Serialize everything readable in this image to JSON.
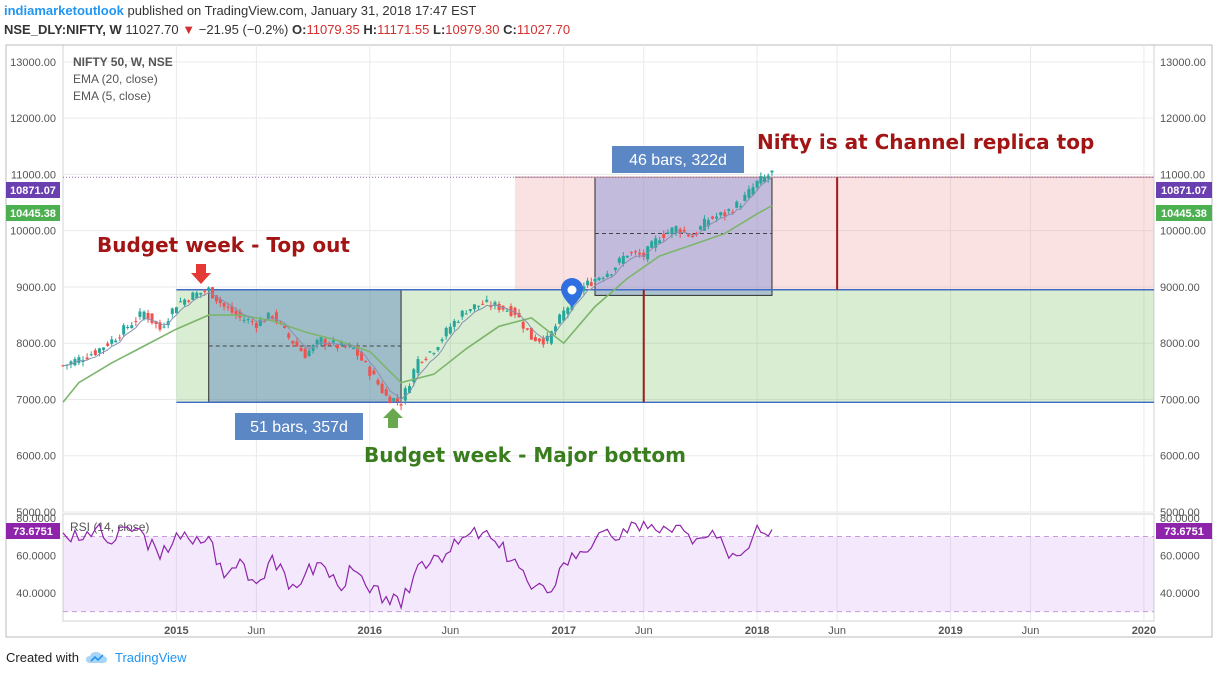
{
  "header": {
    "brand": "indiamarketoutlook",
    "published": "published on TradingView.com, January 31, 2018 17:47 EST",
    "symbol": "NSE_DLY:NIFTY, W",
    "last": "11027.70",
    "change": "−21.95 (−0.2%)",
    "o_label": "O:",
    "o": "11079.35",
    "h_label": "H:",
    "h": "11171.55",
    "l_label": "L:",
    "l": "10979.30",
    "c_label": "C:",
    "c": "11027.70"
  },
  "footer": {
    "created_with": "Created with",
    "brand": "TradingView"
  },
  "colors": {
    "ema20": "#7cb56b",
    "ema5": "#8a8fb0",
    "rsi": "#8e24aa",
    "up": "#26a69a",
    "down": "#ef5350",
    "annotation_red": "#a31515",
    "annotation_green": "#3a7d1e"
  },
  "chart_data": [
    {
      "type": "candlestick",
      "legend": [
        "NIFTY 50, W, NSE",
        "EMA (20, close)",
        "EMA (5, close)"
      ],
      "y_ticks": [
        "13000.00",
        "12000.00",
        "11000.00",
        "10000.00",
        "9000.00",
        "8000.00",
        "7000.00",
        "6000.00",
        "5000.00"
      ],
      "ylim": [
        5000,
        13300
      ],
      "x_ticks": [
        "2015",
        "Jun",
        "2016",
        "Jun",
        "2017",
        "Jun",
        "2018",
        "Jun",
        "2019",
        "Jun",
        "2020"
      ],
      "xlim": [
        "2014-06-01",
        "2020-01-20"
      ],
      "price_labels": [
        {
          "value": 10871.07,
          "text": "10871.07",
          "color": "#6a3fb0"
        },
        {
          "value": 10445.38,
          "text": "10445.38",
          "color": "#4caf50"
        }
      ],
      "price_series": {
        "x": [
          "2014-06-01",
          "2014-07-01",
          "2014-08-01",
          "2014-09-01",
          "2014-10-01",
          "2014-11-01",
          "2014-12-01",
          "2015-01-01",
          "2015-02-01",
          "2015-03-03",
          "2015-04-01",
          "2015-05-01",
          "2015-06-01",
          "2015-07-01",
          "2015-08-01",
          "2015-09-01",
          "2015-10-01",
          "2015-11-01",
          "2015-12-01",
          "2016-01-01",
          "2016-02-01",
          "2016-02-29",
          "2016-04-01",
          "2016-05-01",
          "2016-06-01",
          "2016-07-01",
          "2016-08-01",
          "2016-09-01",
          "2016-10-01",
          "2016-11-01",
          "2016-12-01",
          "2017-01-01",
          "2017-02-01",
          "2017-03-01",
          "2017-04-01",
          "2017-05-01",
          "2017-06-01",
          "2017-07-01",
          "2017-08-01",
          "2017-09-01",
          "2017-10-01",
          "2017-11-01",
          "2017-12-01",
          "2018-01-01",
          "2018-01-29"
        ],
        "close": [
          7600,
          7720,
          7850,
          8050,
          8300,
          8550,
          8250,
          8700,
          8850,
          8950,
          8650,
          8450,
          8350,
          8500,
          8100,
          7800,
          8050,
          7950,
          7900,
          7500,
          7050,
          6950,
          7700,
          7900,
          8300,
          8600,
          8700,
          8650,
          8550,
          8100,
          8050,
          8550,
          8950,
          9150,
          9300,
          9600,
          9550,
          9900,
          10050,
          9900,
          10200,
          10300,
          10500,
          10850,
          11027
        ]
      },
      "ema20_series": {
        "x": [
          "2014-06-01",
          "2014-07-01",
          "2014-09-01",
          "2014-11-01",
          "2015-01-01",
          "2015-03-03",
          "2015-05-01",
          "2015-07-01",
          "2015-09-01",
          "2015-11-01",
          "2016-01-01",
          "2016-02-29",
          "2016-05-01",
          "2016-07-01",
          "2016-09-01",
          "2016-11-01",
          "2017-01-01",
          "2017-03-01",
          "2017-05-01",
          "2017-07-01",
          "2017-09-01",
          "2017-11-01",
          "2018-01-01",
          "2018-01-29"
        ],
        "value": [
          6950,
          7300,
          7650,
          7950,
          8250,
          8500,
          8500,
          8400,
          8200,
          8050,
          7850,
          7300,
          7450,
          7900,
          8300,
          8450,
          8000,
          8650,
          9150,
          9550,
          9750,
          9950,
          10300,
          10445
        ]
      },
      "rsi": {
        "legend": "RSI (14, close)",
        "last_label": "73.6751",
        "y_ticks": [
          "80.0000",
          "60.0000",
          "40.0000"
        ],
        "ylim": [
          25,
          82
        ],
        "overbought": 70,
        "oversold": 30,
        "x": [
          "2014-06-01",
          "2014-07-01",
          "2014-08-01",
          "2014-09-01",
          "2014-10-01",
          "2014-11-01",
          "2014-12-01",
          "2015-01-01",
          "2015-02-01",
          "2015-03-03",
          "2015-04-01",
          "2015-05-01",
          "2015-06-01",
          "2015-07-01",
          "2015-08-01",
          "2015-09-01",
          "2015-10-01",
          "2015-11-01",
          "2015-12-01",
          "2016-01-01",
          "2016-02-01",
          "2016-02-29",
          "2016-04-01",
          "2016-05-01",
          "2016-06-01",
          "2016-07-01",
          "2016-08-01",
          "2016-09-01",
          "2016-10-01",
          "2016-11-01",
          "2016-12-01",
          "2017-01-01",
          "2017-02-01",
          "2017-03-01",
          "2017-04-01",
          "2017-05-01",
          "2017-06-01",
          "2017-07-01",
          "2017-08-01",
          "2017-09-01",
          "2017-10-01",
          "2017-11-01",
          "2017-12-01",
          "2018-01-01",
          "2018-01-29"
        ],
        "value": [
          72,
          68,
          74,
          66,
          75,
          71,
          58,
          72,
          66,
          70,
          48,
          58,
          45,
          60,
          42,
          50,
          56,
          44,
          52,
          40,
          38,
          32,
          55,
          60,
          62,
          70,
          72,
          64,
          58,
          42,
          40,
          56,
          62,
          68,
          70,
          72,
          78,
          72,
          76,
          66,
          70,
          64,
          60,
          76,
          73.68
        ]
      },
      "annotations": [
        {
          "text": "Budget week - Top out",
          "color": "#a31515"
        },
        {
          "text": "Budget week - Major bottom",
          "color": "#3a7d1e"
        },
        {
          "text": "Nifty is at Channel replica top",
          "color": "#a31515"
        },
        {
          "text": "51 bars, 357d",
          "color": "#5b87c5"
        },
        {
          "text": "46 bars, 322d",
          "color": "#5b87c5"
        }
      ],
      "channels": {
        "green_channel": {
          "x": [
            "2015-01-01",
            "2020-01-20"
          ],
          "y": [
            6950,
            8950
          ]
        },
        "red_channel": {
          "x": [
            "2016-10-01",
            "2020-01-20"
          ],
          "y": [
            8950,
            10950
          ]
        },
        "blue_range_1": {
          "x": [
            "2015-03-03",
            "2016-02-29"
          ],
          "y": [
            6950,
            8950
          ]
        },
        "blue_range_2": {
          "x": [
            "2017-03-01",
            "2018-01-29"
          ],
          "y": [
            8850,
            10950
          ]
        }
      }
    }
  ]
}
